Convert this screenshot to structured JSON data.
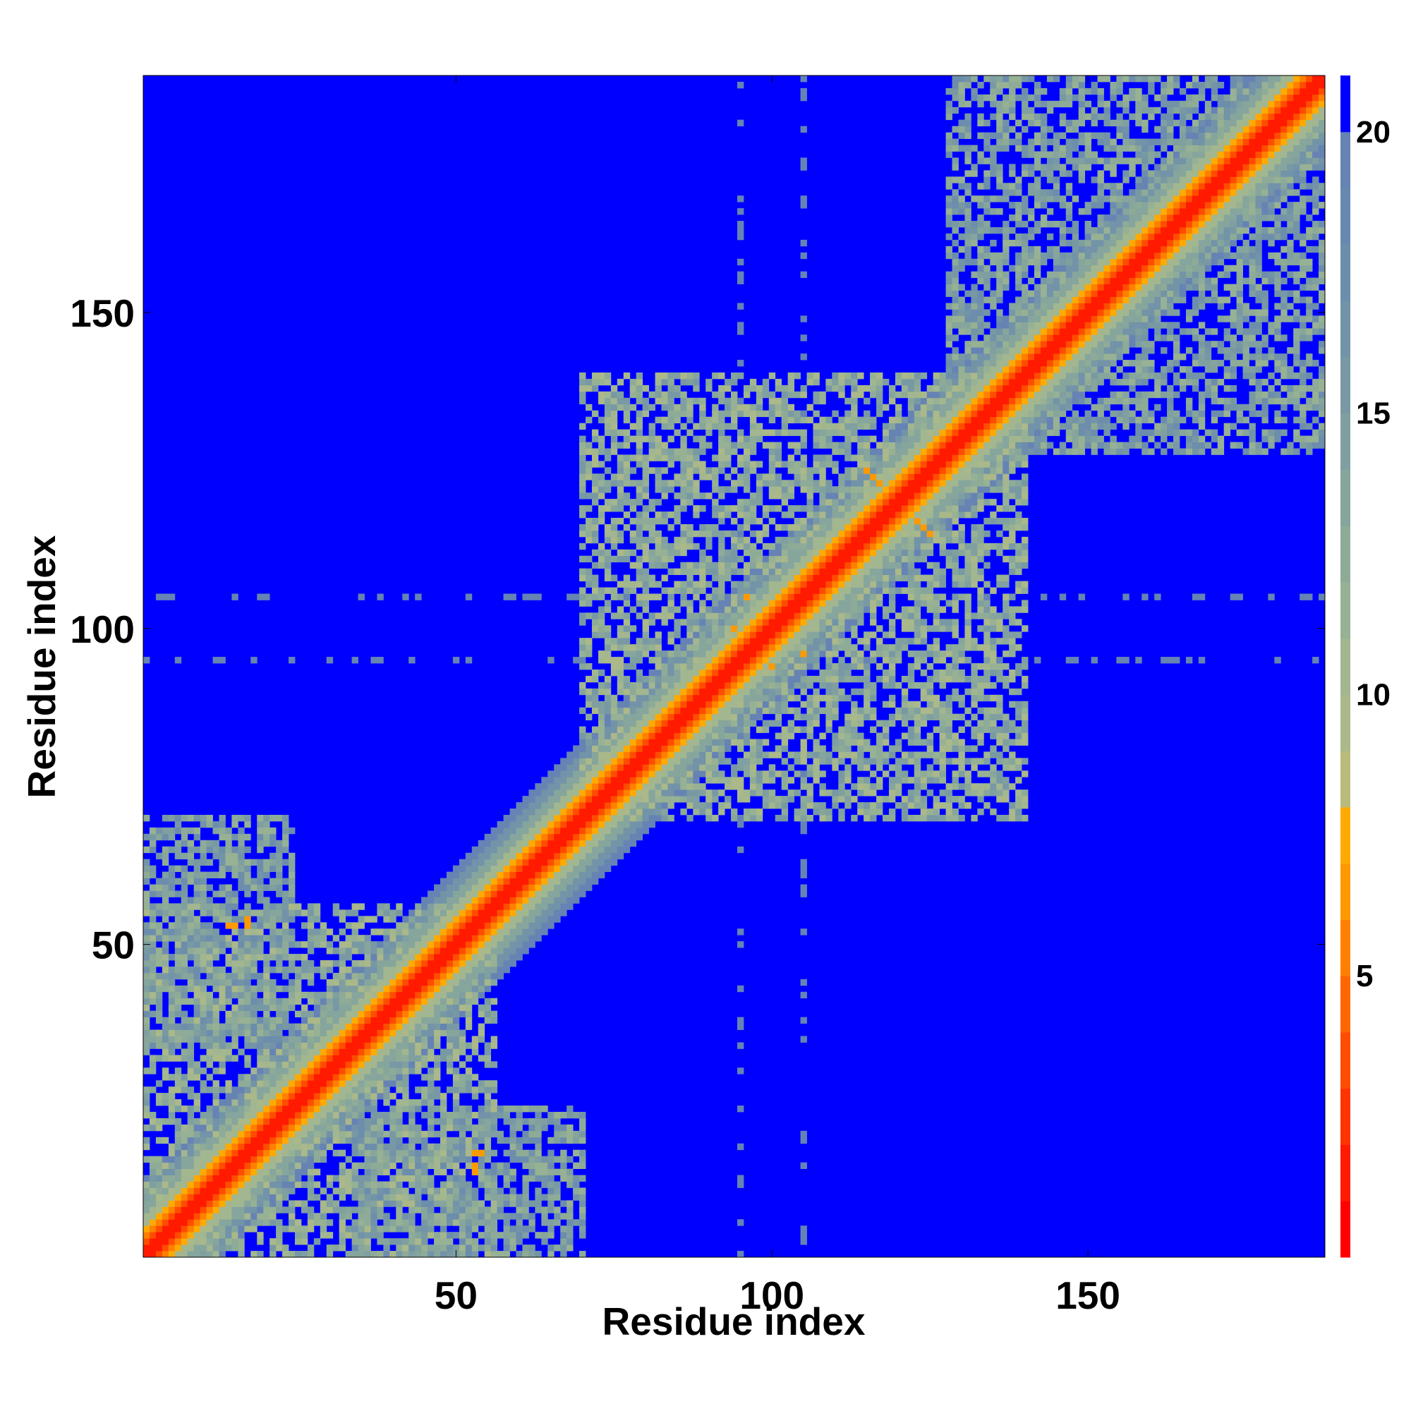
{
  "chart_data": {
    "type": "heatmap",
    "title": "",
    "xlabel": "Residue index",
    "ylabel": "Residue index",
    "n_residues": 187,
    "xlim": [
      1,
      187
    ],
    "ylim": [
      1,
      187
    ],
    "x_ticks": [
      50,
      100,
      150
    ],
    "y_ticks": [
      50,
      100,
      150
    ],
    "colorbar": {
      "range": [
        0,
        21
      ],
      "ticks": [
        5,
        10,
        15,
        20
      ],
      "bins": [
        {
          "max": 1,
          "color": "#ff0000"
        },
        {
          "max": 2,
          "color": "#ff1a00"
        },
        {
          "max": 3,
          "color": "#ff3300"
        },
        {
          "max": 4,
          "color": "#ff4d00"
        },
        {
          "max": 5,
          "color": "#ff6600"
        },
        {
          "max": 6,
          "color": "#ff8000"
        },
        {
          "max": 7,
          "color": "#ff9900"
        },
        {
          "max": 8,
          "color": "#ffaa00"
        },
        {
          "max": 9,
          "color": "#b8bb7c"
        },
        {
          "max": 10,
          "color": "#aab88a"
        },
        {
          "max": 11,
          "color": "#a2b690"
        },
        {
          "max": 12,
          "color": "#97b194"
        },
        {
          "max": 13,
          "color": "#8eab98"
        },
        {
          "max": 14,
          "color": "#86a59c"
        },
        {
          "max": 15,
          "color": "#7f9fa0"
        },
        {
          "max": 16,
          "color": "#7899a4"
        },
        {
          "max": 17,
          "color": "#7293a8"
        },
        {
          "max": 18,
          "color": "#6d8dac"
        },
        {
          "max": 19,
          "color": "#6888b0"
        },
        {
          "max": 20,
          "color": "#6683b4"
        },
        {
          "max": 21,
          "color": "#0000ff"
        }
      ]
    },
    "background_value": 21,
    "diagonal_band": [
      {
        "max_offset": 1,
        "value": 1.5
      },
      {
        "max_offset": 2,
        "value": 3.5
      },
      {
        "max_offset": 3,
        "value": 5.5
      },
      {
        "max_offset": 4,
        "value": 7.5
      },
      {
        "max_offset": 6,
        "value": 10.5
      },
      {
        "max_offset": 8,
        "value": 13.5
      },
      {
        "max_offset": 10,
        "value": 16.5
      },
      {
        "max_offset": 12,
        "value": 19.5
      }
    ],
    "regions": [
      {
        "i": [
          1,
          56
        ],
        "j": [
          1,
          56
        ],
        "value": 12.5
      },
      {
        "i": [
          1,
          24
        ],
        "j": [
          34,
          70
        ],
        "value": 14.5
      },
      {
        "i": [
          34,
          70
        ],
        "j": [
          1,
          24
        ],
        "value": 14.5
      },
      {
        "i": [
          70,
          140
        ],
        "j": [
          70,
          140
        ],
        "value": 12.5
      },
      {
        "i": [
          128,
          187
        ],
        "j": [
          128,
          187
        ],
        "value": 14.5
      }
    ],
    "highlights": [
      {
        "i": 115,
        "j": 125,
        "value": 6.5
      },
      {
        "i": 116,
        "j": 124,
        "value": 6.5
      },
      {
        "i": 117,
        "j": 123,
        "value": 6.5
      },
      {
        "i": 125,
        "j": 115,
        "value": 6.5
      },
      {
        "i": 124,
        "j": 116,
        "value": 6.5
      },
      {
        "i": 123,
        "j": 117,
        "value": 6.5
      },
      {
        "i": 14,
        "j": 53,
        "value": 6.5
      },
      {
        "i": 15,
        "j": 53,
        "value": 6.5
      },
      {
        "i": 53,
        "j": 14,
        "value": 6.5
      },
      {
        "i": 53,
        "j": 15,
        "value": 6.5
      },
      {
        "i": 53,
        "j": 17,
        "value": 6.5
      },
      {
        "i": 54,
        "j": 17,
        "value": 6.5
      },
      {
        "i": 17,
        "j": 53,
        "value": 6.5
      },
      {
        "i": 17,
        "j": 54,
        "value": 6.5
      },
      {
        "i": 96,
        "j": 105,
        "value": 6.5
      },
      {
        "i": 105,
        "j": 96,
        "value": 6.5
      },
      {
        "i": 94,
        "j": 100,
        "value": 6.5
      },
      {
        "i": 100,
        "j": 94,
        "value": 6.5
      }
    ],
    "sparse_columns": [
      95,
      105
    ],
    "sparse_rows": [
      95,
      105
    ]
  }
}
